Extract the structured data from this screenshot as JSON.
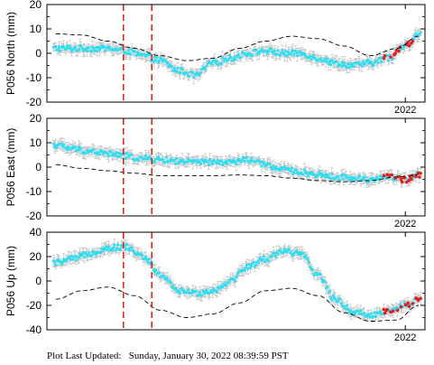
{
  "footer": {
    "label": "Plot Last Updated:",
    "timestamp": "Sunday, January 30, 2022 08:39:59 PST"
  },
  "colors": {
    "data_points": "#33ddf0",
    "error_bars": "#b8b8b8",
    "recent_points": "#e02020",
    "model_line": "#000000",
    "event_lines": "#e02020"
  },
  "chart_data": [
    {
      "type": "scatter",
      "ylabel": "P056 North (mm)",
      "ylim": [
        -20,
        20
      ],
      "yticks": [
        -20,
        -10,
        0,
        10,
        20
      ],
      "xlim": [
        2013.8,
        2022.45
      ],
      "xtick_label": "2022",
      "xtick_value": 2022.0,
      "event_lines": [
        2015.55,
        2016.2
      ],
      "grid": false,
      "series": [
        {
          "x": [
            2014.0,
            2014.4,
            2014.8,
            2015.2,
            2015.6,
            2016.0,
            2016.4,
            2016.8,
            2017.2,
            2017.6,
            2018.0,
            2018.4,
            2018.8,
            2019.2,
            2019.6,
            2020.0,
            2020.4,
            2020.8,
            2021.2,
            2021.6,
            2022.0,
            2022.3
          ],
          "y": [
            2,
            2,
            2,
            2,
            1,
            -1,
            -3,
            -7,
            -9,
            -4,
            -2,
            0,
            1,
            0,
            0,
            -2,
            -4,
            -5,
            -4,
            -2,
            3,
            8
          ]
        },
        {
          "x": [
            2014.0,
            2014.6,
            2015.2,
            2015.8,
            2016.4,
            2017.0,
            2017.6,
            2018.2,
            2018.8,
            2019.4,
            2020.0,
            2020.6,
            2021.2,
            2021.8,
            2022.3
          ],
          "y": [
            8,
            7.5,
            5,
            2,
            -1,
            -3,
            -2,
            2,
            5,
            7,
            6,
            3,
            -1,
            2,
            7
          ]
        }
      ]
    },
    {
      "type": "scatter",
      "ylabel": "P056 East (mm)",
      "ylim": [
        -20,
        20
      ],
      "yticks": [
        -20,
        -10,
        0,
        10,
        20
      ],
      "xlim": [
        2013.8,
        2022.45
      ],
      "xtick_label": "2022",
      "xtick_value": 2022.0,
      "event_lines": [
        2015.55,
        2016.2
      ],
      "grid": false,
      "series": [
        {
          "x": [
            2014.0,
            2014.4,
            2014.8,
            2015.2,
            2015.6,
            2016.0,
            2016.4,
            2016.8,
            2017.2,
            2017.6,
            2018.0,
            2018.4,
            2018.8,
            2019.2,
            2019.6,
            2020.0,
            2020.4,
            2020.8,
            2021.2,
            2021.6,
            2022.0,
            2022.3
          ],
          "y": [
            9,
            7.5,
            6.5,
            5.5,
            4.5,
            3.5,
            3,
            2.5,
            2,
            2,
            2,
            3,
            1,
            -1,
            -2,
            -3,
            -4,
            -4.5,
            -5,
            -4,
            -5,
            -3
          ]
        },
        {
          "x": [
            2014.0,
            2014.6,
            2015.2,
            2015.8,
            2016.4,
            2017.0,
            2017.6,
            2018.2,
            2018.8,
            2019.4,
            2020.0,
            2020.6,
            2021.2,
            2021.8,
            2022.3
          ],
          "y": [
            1,
            -0.5,
            -1.5,
            -2.5,
            -3.5,
            -3.5,
            -3.5,
            -3.2,
            -3.5,
            -4.5,
            -5.5,
            -6,
            -5.5,
            -4,
            -3
          ]
        }
      ]
    },
    {
      "type": "scatter",
      "ylabel": "P056 Up (mm)",
      "ylim": [
        -40,
        40
      ],
      "yticks": [
        -40,
        -20,
        0,
        20,
        40
      ],
      "xlim": [
        2013.8,
        2022.45
      ],
      "xtick_label": "2022",
      "xtick_value": 2022.0,
      "event_lines": [
        2015.55,
        2016.2
      ],
      "grid": false,
      "series": [
        {
          "x": [
            2014.0,
            2014.4,
            2014.8,
            2015.2,
            2015.6,
            2016.0,
            2016.4,
            2016.8,
            2017.2,
            2017.6,
            2018.0,
            2018.4,
            2018.8,
            2019.2,
            2019.6,
            2020.0,
            2020.4,
            2020.8,
            2021.2,
            2021.6,
            2022.0,
            2022.3
          ],
          "y": [
            15,
            18,
            23,
            27,
            28,
            20,
            5,
            -8,
            -10,
            -8,
            0,
            12,
            18,
            25,
            22,
            5,
            -15,
            -25,
            -28,
            -25,
            -20,
            -15
          ]
        },
        {
          "x": [
            2014.0,
            2014.6,
            2015.2,
            2015.8,
            2016.4,
            2017.0,
            2017.6,
            2018.2,
            2018.8,
            2019.4,
            2020.0,
            2020.6,
            2021.2,
            2021.8,
            2022.3
          ],
          "y": [
            -15,
            -8,
            -5,
            -12,
            -24,
            -30,
            -27,
            -18,
            -8,
            -6,
            -12,
            -26,
            -33,
            -32,
            -20
          ]
        }
      ]
    }
  ]
}
